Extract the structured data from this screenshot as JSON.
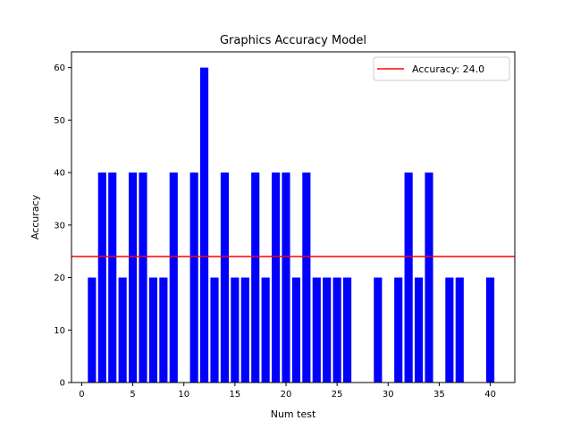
{
  "chart_data": {
    "type": "bar",
    "title": "Graphics Accuracy Model",
    "xlabel": "Num test",
    "ylabel": "Accuracy",
    "xlim": [
      -1,
      42.4
    ],
    "ylim": [
      0,
      63
    ],
    "xticks": [
      0,
      5,
      10,
      15,
      20,
      25,
      30,
      35,
      40
    ],
    "yticks": [
      0,
      10,
      20,
      30,
      40,
      50,
      60
    ],
    "bar_color": "#0000ff",
    "bar_width": 0.8,
    "x": [
      1,
      2,
      3,
      4,
      5,
      6,
      7,
      8,
      9,
      10,
      11,
      12,
      13,
      14,
      15,
      16,
      17,
      18,
      19,
      20,
      21,
      22,
      23,
      24,
      25,
      26,
      27,
      28,
      29,
      30,
      31,
      32,
      33,
      34,
      35,
      36,
      37,
      38,
      39,
      40
    ],
    "values": [
      20,
      40,
      40,
      20,
      40,
      40,
      20,
      20,
      40,
      0,
      40,
      60,
      20,
      40,
      20,
      20,
      40,
      20,
      40,
      40,
      20,
      40,
      20,
      20,
      20,
      20,
      0,
      0,
      20,
      0,
      20,
      40,
      20,
      40,
      0,
      20,
      20,
      0,
      0,
      20
    ],
    "reference_line": {
      "y": 24.0,
      "color": "#ff0000",
      "label": "Accuracy: 24.0"
    },
    "legend": {
      "placement": "top-right",
      "entries": [
        "Accuracy: 24.0"
      ]
    },
    "grid": false
  }
}
